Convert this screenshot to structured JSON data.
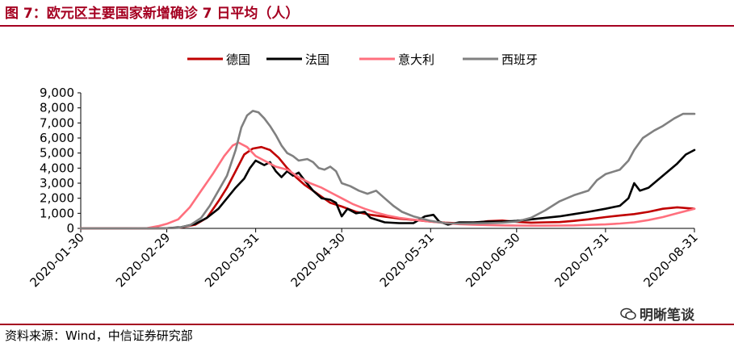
{
  "title": "图 7：欧元区主要国家新增确诊 7 日平均（人）",
  "source": "资料来源：Wind，中信证券研究部",
  "watermark": "明晰笔谈",
  "chart_data": {
    "type": "line",
    "title": "图 7：欧元区主要国家新增确诊 7 日平均（人）",
    "xlabel": "",
    "ylabel": "",
    "x_range": [
      "2020-01-30",
      "2020-08-31"
    ],
    "x_ticks": [
      "2020-01-30",
      "2020-02-29",
      "2020-03-31",
      "2020-04-30",
      "2020-05-31",
      "2020-06-30",
      "2020-07-31",
      "2020-08-31"
    ],
    "ylim": [
      0,
      9000
    ],
    "y_ticks": [
      0,
      1000,
      2000,
      3000,
      4000,
      5000,
      6000,
      7000,
      8000,
      9000
    ],
    "y_tick_labels": [
      "0",
      "1,000",
      "2,000",
      "3,000",
      "4,000",
      "5,000",
      "6,000",
      "7,000",
      "8,000",
      "9,000"
    ],
    "grid": false,
    "legend_position": "top",
    "series": [
      {
        "name": "德国",
        "color": "#c00000",
        "points": [
          [
            "2020-01-30",
            0
          ],
          [
            "2020-02-15",
            0
          ],
          [
            "2020-02-29",
            10
          ],
          [
            "2020-03-05",
            60
          ],
          [
            "2020-03-10",
            250
          ],
          [
            "2020-03-14",
            700
          ],
          [
            "2020-03-18",
            1800
          ],
          [
            "2020-03-21",
            2700
          ],
          [
            "2020-03-24",
            3800
          ],
          [
            "2020-03-27",
            4900
          ],
          [
            "2020-03-30",
            5300
          ],
          [
            "2020-04-02",
            5400
          ],
          [
            "2020-04-05",
            5200
          ],
          [
            "2020-04-08",
            4700
          ],
          [
            "2020-04-11",
            4000
          ],
          [
            "2020-04-14",
            3400
          ],
          [
            "2020-04-17",
            2900
          ],
          [
            "2020-04-20",
            2500
          ],
          [
            "2020-04-23",
            2100
          ],
          [
            "2020-04-26",
            1700
          ],
          [
            "2020-04-30",
            1450
          ],
          [
            "2020-05-05",
            1100
          ],
          [
            "2020-05-10",
            900
          ],
          [
            "2020-05-15",
            780
          ],
          [
            "2020-05-20",
            650
          ],
          [
            "2020-05-25",
            560
          ],
          [
            "2020-05-31",
            450
          ],
          [
            "2020-06-05",
            380
          ],
          [
            "2020-06-10",
            340
          ],
          [
            "2020-06-15",
            360
          ],
          [
            "2020-06-20",
            480
          ],
          [
            "2020-06-25",
            520
          ],
          [
            "2020-06-30",
            430
          ],
          [
            "2020-07-05",
            380
          ],
          [
            "2020-07-10",
            400
          ],
          [
            "2020-07-15",
            420
          ],
          [
            "2020-07-20",
            500
          ],
          [
            "2020-07-25",
            600
          ],
          [
            "2020-07-31",
            750
          ],
          [
            "2020-08-05",
            850
          ],
          [
            "2020-08-10",
            950
          ],
          [
            "2020-08-15",
            1100
          ],
          [
            "2020-08-20",
            1300
          ],
          [
            "2020-08-25",
            1400
          ],
          [
            "2020-08-31",
            1300
          ]
        ]
      },
      {
        "name": "法国",
        "color": "#000000",
        "points": [
          [
            "2020-01-30",
            0
          ],
          [
            "2020-02-15",
            0
          ],
          [
            "2020-02-29",
            10
          ],
          [
            "2020-03-05",
            80
          ],
          [
            "2020-03-10",
            300
          ],
          [
            "2020-03-14",
            700
          ],
          [
            "2020-03-18",
            1300
          ],
          [
            "2020-03-21",
            2000
          ],
          [
            "2020-03-24",
            2700
          ],
          [
            "2020-03-27",
            3300
          ],
          [
            "2020-03-29",
            4000
          ],
          [
            "2020-03-31",
            4500
          ],
          [
            "2020-04-03",
            4200
          ],
          [
            "2020-04-05",
            4400
          ],
          [
            "2020-04-07",
            3800
          ],
          [
            "2020-04-09",
            3400
          ],
          [
            "2020-04-11",
            3800
          ],
          [
            "2020-04-13",
            3500
          ],
          [
            "2020-04-15",
            3700
          ],
          [
            "2020-04-17",
            3200
          ],
          [
            "2020-04-20",
            2500
          ],
          [
            "2020-04-23",
            2000
          ],
          [
            "2020-04-26",
            1900
          ],
          [
            "2020-04-28",
            1700
          ],
          [
            "2020-04-30",
            800
          ],
          [
            "2020-05-02",
            1300
          ],
          [
            "2020-05-05",
            1000
          ],
          [
            "2020-05-08",
            1100
          ],
          [
            "2020-05-10",
            700
          ],
          [
            "2020-05-15",
            400
          ],
          [
            "2020-05-20",
            350
          ],
          [
            "2020-05-25",
            350
          ],
          [
            "2020-05-29",
            800
          ],
          [
            "2020-06-01",
            900
          ],
          [
            "2020-06-03",
            450
          ],
          [
            "2020-06-06",
            250
          ],
          [
            "2020-06-10",
            400
          ],
          [
            "2020-06-15",
            400
          ],
          [
            "2020-06-20",
            450
          ],
          [
            "2020-06-25",
            450
          ],
          [
            "2020-06-30",
            500
          ],
          [
            "2020-07-05",
            600
          ],
          [
            "2020-07-10",
            700
          ],
          [
            "2020-07-15",
            800
          ],
          [
            "2020-07-20",
            950
          ],
          [
            "2020-07-25",
            1100
          ],
          [
            "2020-07-31",
            1300
          ],
          [
            "2020-08-05",
            1500
          ],
          [
            "2020-08-08",
            2000
          ],
          [
            "2020-08-10",
            3000
          ],
          [
            "2020-08-12",
            2500
          ],
          [
            "2020-08-15",
            2700
          ],
          [
            "2020-08-20",
            3500
          ],
          [
            "2020-08-25",
            4300
          ],
          [
            "2020-08-28",
            4900
          ],
          [
            "2020-08-31",
            5200
          ]
        ]
      },
      {
        "name": "意大利",
        "color": "#ff6f7d",
        "points": [
          [
            "2020-01-30",
            0
          ],
          [
            "2020-02-15",
            0
          ],
          [
            "2020-02-22",
            10
          ],
          [
            "2020-02-26",
            150
          ],
          [
            "2020-02-29",
            300
          ],
          [
            "2020-03-04",
            600
          ],
          [
            "2020-03-08",
            1400
          ],
          [
            "2020-03-12",
            2500
          ],
          [
            "2020-03-16",
            3600
          ],
          [
            "2020-03-20",
            4800
          ],
          [
            "2020-03-23",
            5500
          ],
          [
            "2020-03-25",
            5700
          ],
          [
            "2020-03-28",
            5400
          ],
          [
            "2020-03-31",
            4800
          ],
          [
            "2020-04-03",
            4500
          ],
          [
            "2020-04-07",
            4100
          ],
          [
            "2020-04-11",
            3900
          ],
          [
            "2020-04-15",
            3400
          ],
          [
            "2020-04-19",
            3000
          ],
          [
            "2020-04-23",
            2700
          ],
          [
            "2020-04-27",
            2300
          ],
          [
            "2020-04-30",
            2000
          ],
          [
            "2020-05-04",
            1600
          ],
          [
            "2020-05-08",
            1300
          ],
          [
            "2020-05-12",
            1050
          ],
          [
            "2020-05-16",
            850
          ],
          [
            "2020-05-20",
            700
          ],
          [
            "2020-05-25",
            580
          ],
          [
            "2020-05-31",
            450
          ],
          [
            "2020-06-05",
            360
          ],
          [
            "2020-06-10",
            280
          ],
          [
            "2020-06-15",
            240
          ],
          [
            "2020-06-20",
            220
          ],
          [
            "2020-06-25",
            200
          ],
          [
            "2020-06-30",
            190
          ],
          [
            "2020-07-05",
            180
          ],
          [
            "2020-07-10",
            180
          ],
          [
            "2020-07-15",
            190
          ],
          [
            "2020-07-20",
            200
          ],
          [
            "2020-07-25",
            230
          ],
          [
            "2020-07-31",
            260
          ],
          [
            "2020-08-05",
            320
          ],
          [
            "2020-08-10",
            400
          ],
          [
            "2020-08-15",
            550
          ],
          [
            "2020-08-20",
            750
          ],
          [
            "2020-08-25",
            1000
          ],
          [
            "2020-08-31",
            1300
          ]
        ]
      },
      {
        "name": "西班牙",
        "color": "#808080",
        "points": [
          [
            "2020-01-30",
            0
          ],
          [
            "2020-02-15",
            0
          ],
          [
            "2020-02-29",
            10
          ],
          [
            "2020-03-04",
            40
          ],
          [
            "2020-03-08",
            200
          ],
          [
            "2020-03-12",
            700
          ],
          [
            "2020-03-15",
            1500
          ],
          [
            "2020-03-18",
            2500
          ],
          [
            "2020-03-21",
            3500
          ],
          [
            "2020-03-24",
            5200
          ],
          [
            "2020-03-26",
            6700
          ],
          [
            "2020-03-28",
            7500
          ],
          [
            "2020-03-30",
            7800
          ],
          [
            "2020-04-01",
            7700
          ],
          [
            "2020-04-03",
            7300
          ],
          [
            "2020-04-05",
            6800
          ],
          [
            "2020-04-07",
            6200
          ],
          [
            "2020-04-09",
            5500
          ],
          [
            "2020-04-11",
            5000
          ],
          [
            "2020-04-13",
            4800
          ],
          [
            "2020-04-15",
            4500
          ],
          [
            "2020-04-18",
            4600
          ],
          [
            "2020-04-20",
            4400
          ],
          [
            "2020-04-22",
            4000
          ],
          [
            "2020-04-24",
            3900
          ],
          [
            "2020-04-26",
            4100
          ],
          [
            "2020-04-28",
            3800
          ],
          [
            "2020-04-30",
            3000
          ],
          [
            "2020-05-03",
            2800
          ],
          [
            "2020-05-06",
            2500
          ],
          [
            "2020-05-09",
            2300
          ],
          [
            "2020-05-12",
            2500
          ],
          [
            "2020-05-15",
            2000
          ],
          [
            "2020-05-18",
            1500
          ],
          [
            "2020-05-21",
            1100
          ],
          [
            "2020-05-25",
            800
          ],
          [
            "2020-05-31",
            500
          ],
          [
            "2020-06-05",
            350
          ],
          [
            "2020-06-10",
            320
          ],
          [
            "2020-06-15",
            330
          ],
          [
            "2020-06-20",
            350
          ],
          [
            "2020-06-25",
            380
          ],
          [
            "2020-06-30",
            450
          ],
          [
            "2020-07-05",
            700
          ],
          [
            "2020-07-10",
            1200
          ],
          [
            "2020-07-15",
            1800
          ],
          [
            "2020-07-20",
            2200
          ],
          [
            "2020-07-25",
            2500
          ],
          [
            "2020-07-28",
            3200
          ],
          [
            "2020-07-31",
            3600
          ],
          [
            "2020-08-05",
            3900
          ],
          [
            "2020-08-08",
            4500
          ],
          [
            "2020-08-10",
            5200
          ],
          [
            "2020-08-13",
            6000
          ],
          [
            "2020-08-17",
            6500
          ],
          [
            "2020-08-20",
            6800
          ],
          [
            "2020-08-24",
            7300
          ],
          [
            "2020-08-27",
            7600
          ],
          [
            "2020-08-31",
            7600
          ]
        ]
      }
    ]
  }
}
